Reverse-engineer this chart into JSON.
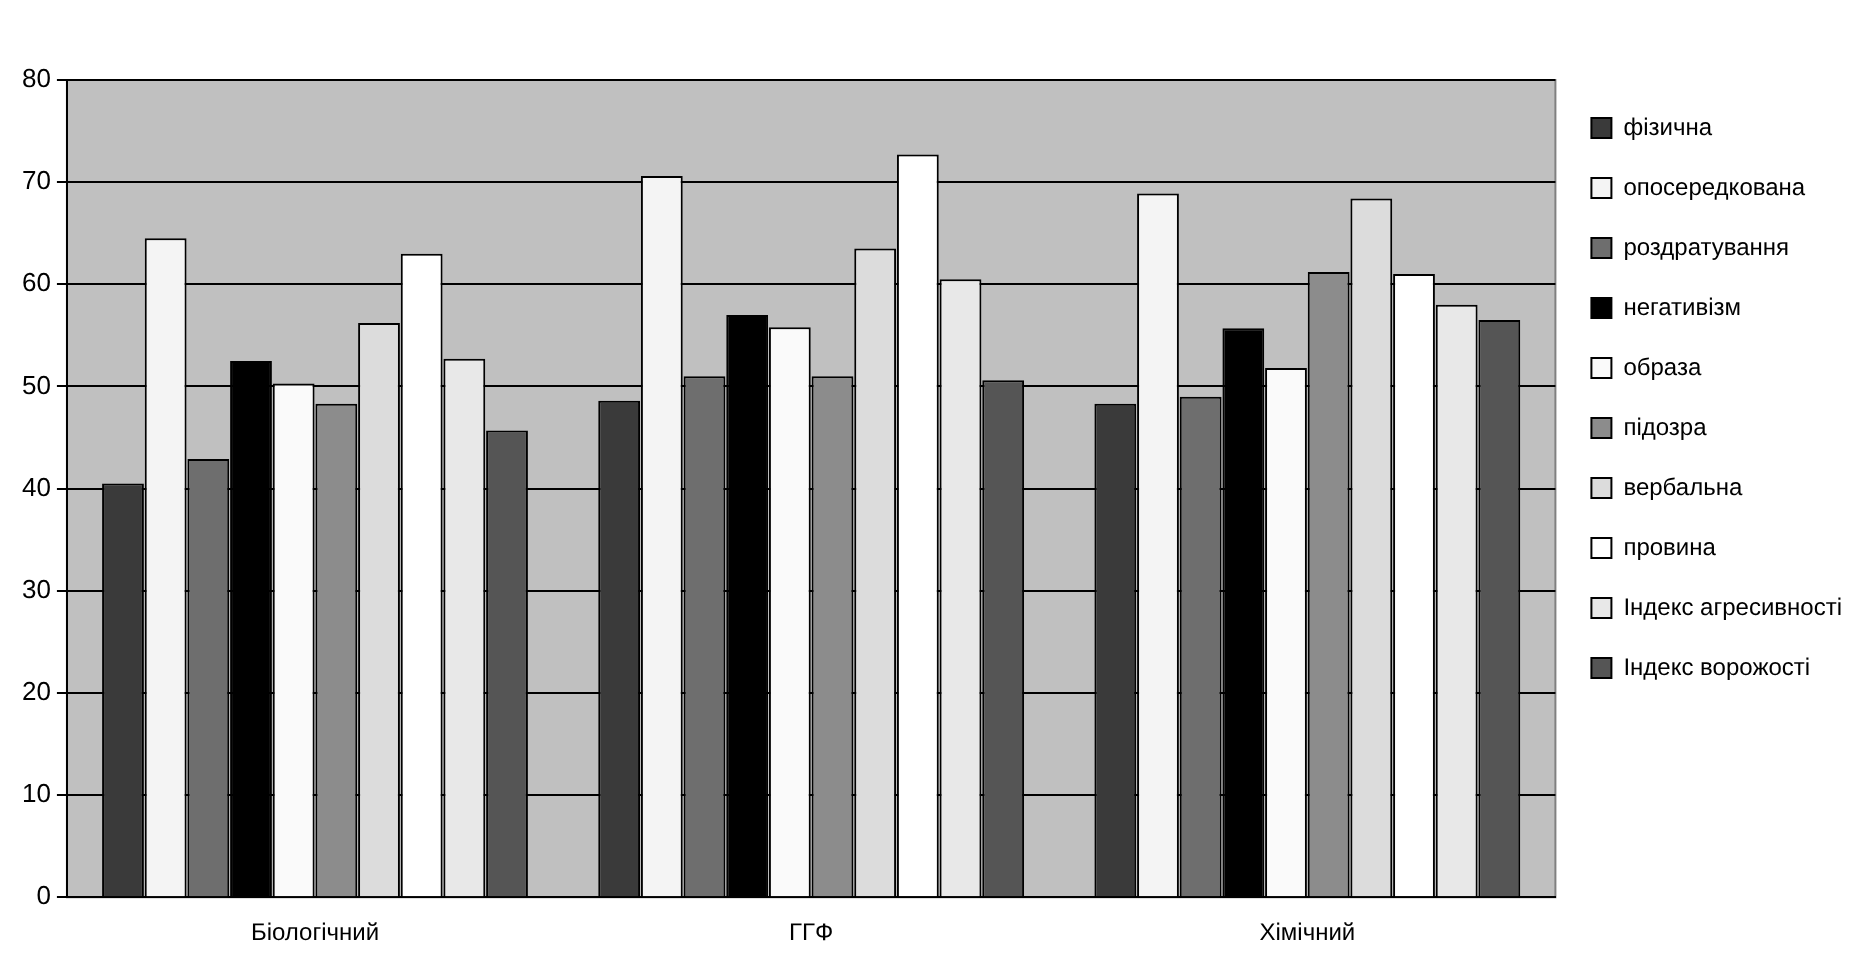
{
  "chart_data": {
    "type": "bar",
    "categories": [
      "Біологічний",
      "ГГФ",
      "Хімічний"
    ],
    "series": [
      {
        "name": "фізична",
        "color": "#3a3a3a",
        "values": [
          40.5,
          48.6,
          48.3
        ]
      },
      {
        "name": "опосередкована",
        "color": "#f4f4f4",
        "values": [
          64.5,
          70.6,
          68.9
        ]
      },
      {
        "name": "роздратування",
        "color": "#6e6e6e",
        "values": [
          42.9,
          51,
          49
        ]
      },
      {
        "name": "негативізм",
        "color": "#000000",
        "values": [
          52.5,
          57,
          55.7
        ]
      },
      {
        "name": "образа",
        "color": "#fafafa",
        "values": [
          50.3,
          55.8,
          51.8
        ]
      },
      {
        "name": "підозра",
        "color": "#8c8c8c",
        "values": [
          48.3,
          51,
          61.2
        ]
      },
      {
        "name": "вербальна",
        "color": "#dcdcdc",
        "values": [
          56.2,
          63.5,
          68.4
        ]
      },
      {
        "name": "провина",
        "color": "#ffffff",
        "values": [
          63,
          72.7,
          61
        ]
      },
      {
        "name": "Індекс агресивності",
        "color": "#e8e8e8",
        "values": [
          52.7,
          60.5,
          58
        ]
      },
      {
        "name": "Індекс ворожості",
        "color": "#555555",
        "values": [
          45.7,
          50.6,
          56.5
        ]
      }
    ],
    "ylim": [
      0,
      80
    ],
    "yticks": [
      0,
      10,
      20,
      30,
      40,
      50,
      60,
      70,
      80
    ],
    "grid": "y",
    "legend": "right"
  }
}
